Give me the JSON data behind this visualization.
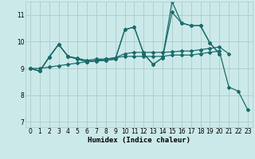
{
  "xlabel": "Humidex (Indice chaleur)",
  "xlim": [
    -0.5,
    23.5
  ],
  "ylim": [
    6.8,
    11.5
  ],
  "yticks": [
    7,
    8,
    9,
    10,
    11
  ],
  "xticks": [
    0,
    1,
    2,
    3,
    4,
    5,
    6,
    7,
    8,
    9,
    10,
    11,
    12,
    13,
    14,
    15,
    16,
    17,
    18,
    19,
    20,
    21,
    22,
    23
  ],
  "background_color": "#cce9e9",
  "grid_color": "#aacccc",
  "line_color": "#1a6b6b",
  "lines": [
    {
      "x": [
        0,
        1,
        2,
        3,
        4,
        5,
        6,
        7,
        8,
        9,
        10,
        11,
        12,
        13,
        14,
        15,
        16,
        17,
        18,
        19,
        20
      ],
      "y": [
        9.0,
        8.9,
        9.42,
        9.9,
        9.45,
        9.35,
        9.25,
        9.28,
        9.3,
        9.35,
        10.45,
        10.55,
        9.55,
        9.15,
        9.4,
        11.1,
        10.7,
        10.6,
        10.6,
        9.95,
        9.55
      ]
    },
    {
      "x": [
        0,
        1,
        2,
        3,
        4,
        5,
        6,
        7,
        8,
        9,
        10,
        11,
        12,
        13,
        14,
        15,
        16,
        17,
        18,
        19,
        20
      ],
      "y": [
        9.0,
        8.9,
        9.42,
        9.9,
        9.45,
        9.35,
        9.25,
        9.28,
        9.3,
        9.35,
        10.45,
        10.55,
        9.55,
        9.15,
        9.4,
        11.5,
        10.7,
        10.6,
        10.6,
        9.95,
        9.55
      ]
    },
    {
      "x": [
        0,
        1,
        2,
        3,
        4,
        5,
        6,
        7,
        8,
        9,
        10,
        11,
        12,
        13,
        14,
        15,
        16,
        17,
        18,
        19,
        20,
        21
      ],
      "y": [
        9.0,
        8.9,
        9.42,
        9.9,
        9.45,
        9.38,
        9.3,
        9.35,
        9.35,
        9.4,
        9.55,
        9.6,
        9.6,
        9.6,
        9.6,
        9.62,
        9.65,
        9.65,
        9.7,
        9.75,
        9.8,
        9.55
      ]
    },
    {
      "x": [
        0,
        1,
        2,
        3,
        4,
        5,
        6,
        7,
        8,
        9,
        10,
        11,
        12,
        13,
        14,
        15,
        16,
        17,
        18,
        19,
        20,
        21,
        22,
        23
      ],
      "y": [
        9.0,
        9.0,
        9.05,
        9.1,
        9.15,
        9.2,
        9.25,
        9.3,
        9.35,
        9.4,
        9.45,
        9.45,
        9.45,
        9.45,
        9.45,
        9.5,
        9.5,
        9.5,
        9.55,
        9.6,
        9.65,
        8.3,
        8.15,
        7.45
      ]
    }
  ]
}
